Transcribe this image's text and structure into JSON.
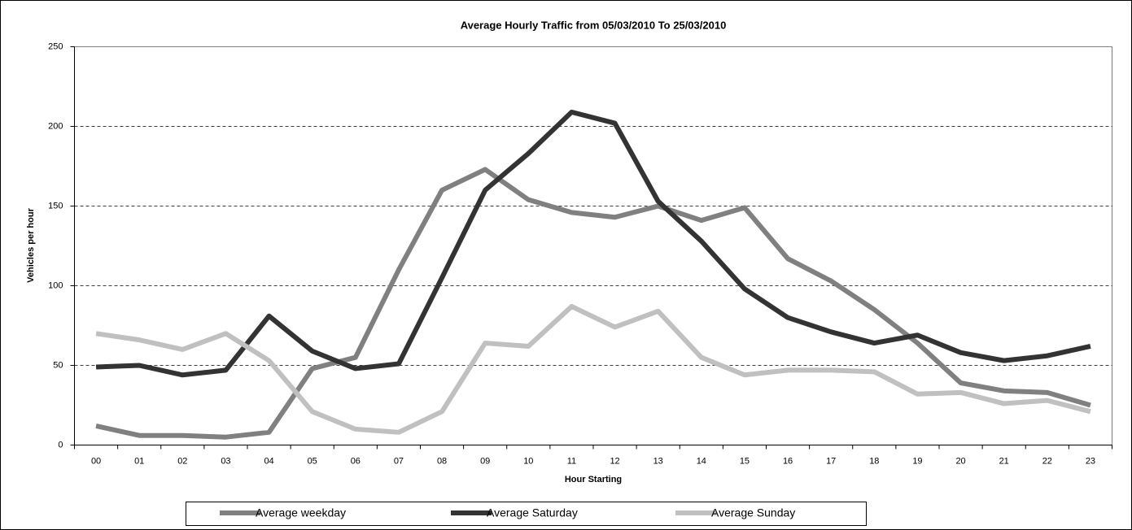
{
  "chart_data": {
    "type": "line",
    "title": "Average Hourly Traffic from 05/03/2010 To 25/03/2010",
    "x_label": "Hour Starting",
    "y_label": "Vehicles per hour",
    "categories": [
      "00",
      "01",
      "02",
      "03",
      "04",
      "05",
      "06",
      "07",
      "08",
      "09",
      "10",
      "11",
      "12",
      "13",
      "14",
      "15",
      "16",
      "17",
      "18",
      "19",
      "20",
      "21",
      "22",
      "23"
    ],
    "series": [
      {
        "name": "Average weekday",
        "color": "#808080",
        "values": [
          12,
          6,
          6,
          5,
          8,
          48,
          55,
          110,
          160,
          173,
          154,
          146,
          143,
          150,
          141,
          149,
          117,
          103,
          85,
          64,
          39,
          34,
          33,
          25
        ]
      },
      {
        "name": "Average Saturday",
        "color": "#333333",
        "values": [
          49,
          50,
          44,
          47,
          81,
          59,
          48,
          51,
          105,
          160,
          183,
          209,
          202,
          153,
          128,
          98,
          80,
          71,
          64,
          69,
          58,
          53,
          56,
          62
        ]
      },
      {
        "name": "Average Sunday",
        "color": "#c0c0c0",
        "values": [
          70,
          66,
          60,
          70,
          53,
          21,
          10,
          8,
          21,
          64,
          62,
          87,
          74,
          84,
          55,
          44,
          47,
          47,
          46,
          32,
          33,
          26,
          28,
          21
        ]
      }
    ],
    "ylim": [
      0,
      250
    ],
    "yticks": [
      0,
      50,
      100,
      150,
      200,
      250
    ],
    "grid": true,
    "legend": "bottom"
  }
}
